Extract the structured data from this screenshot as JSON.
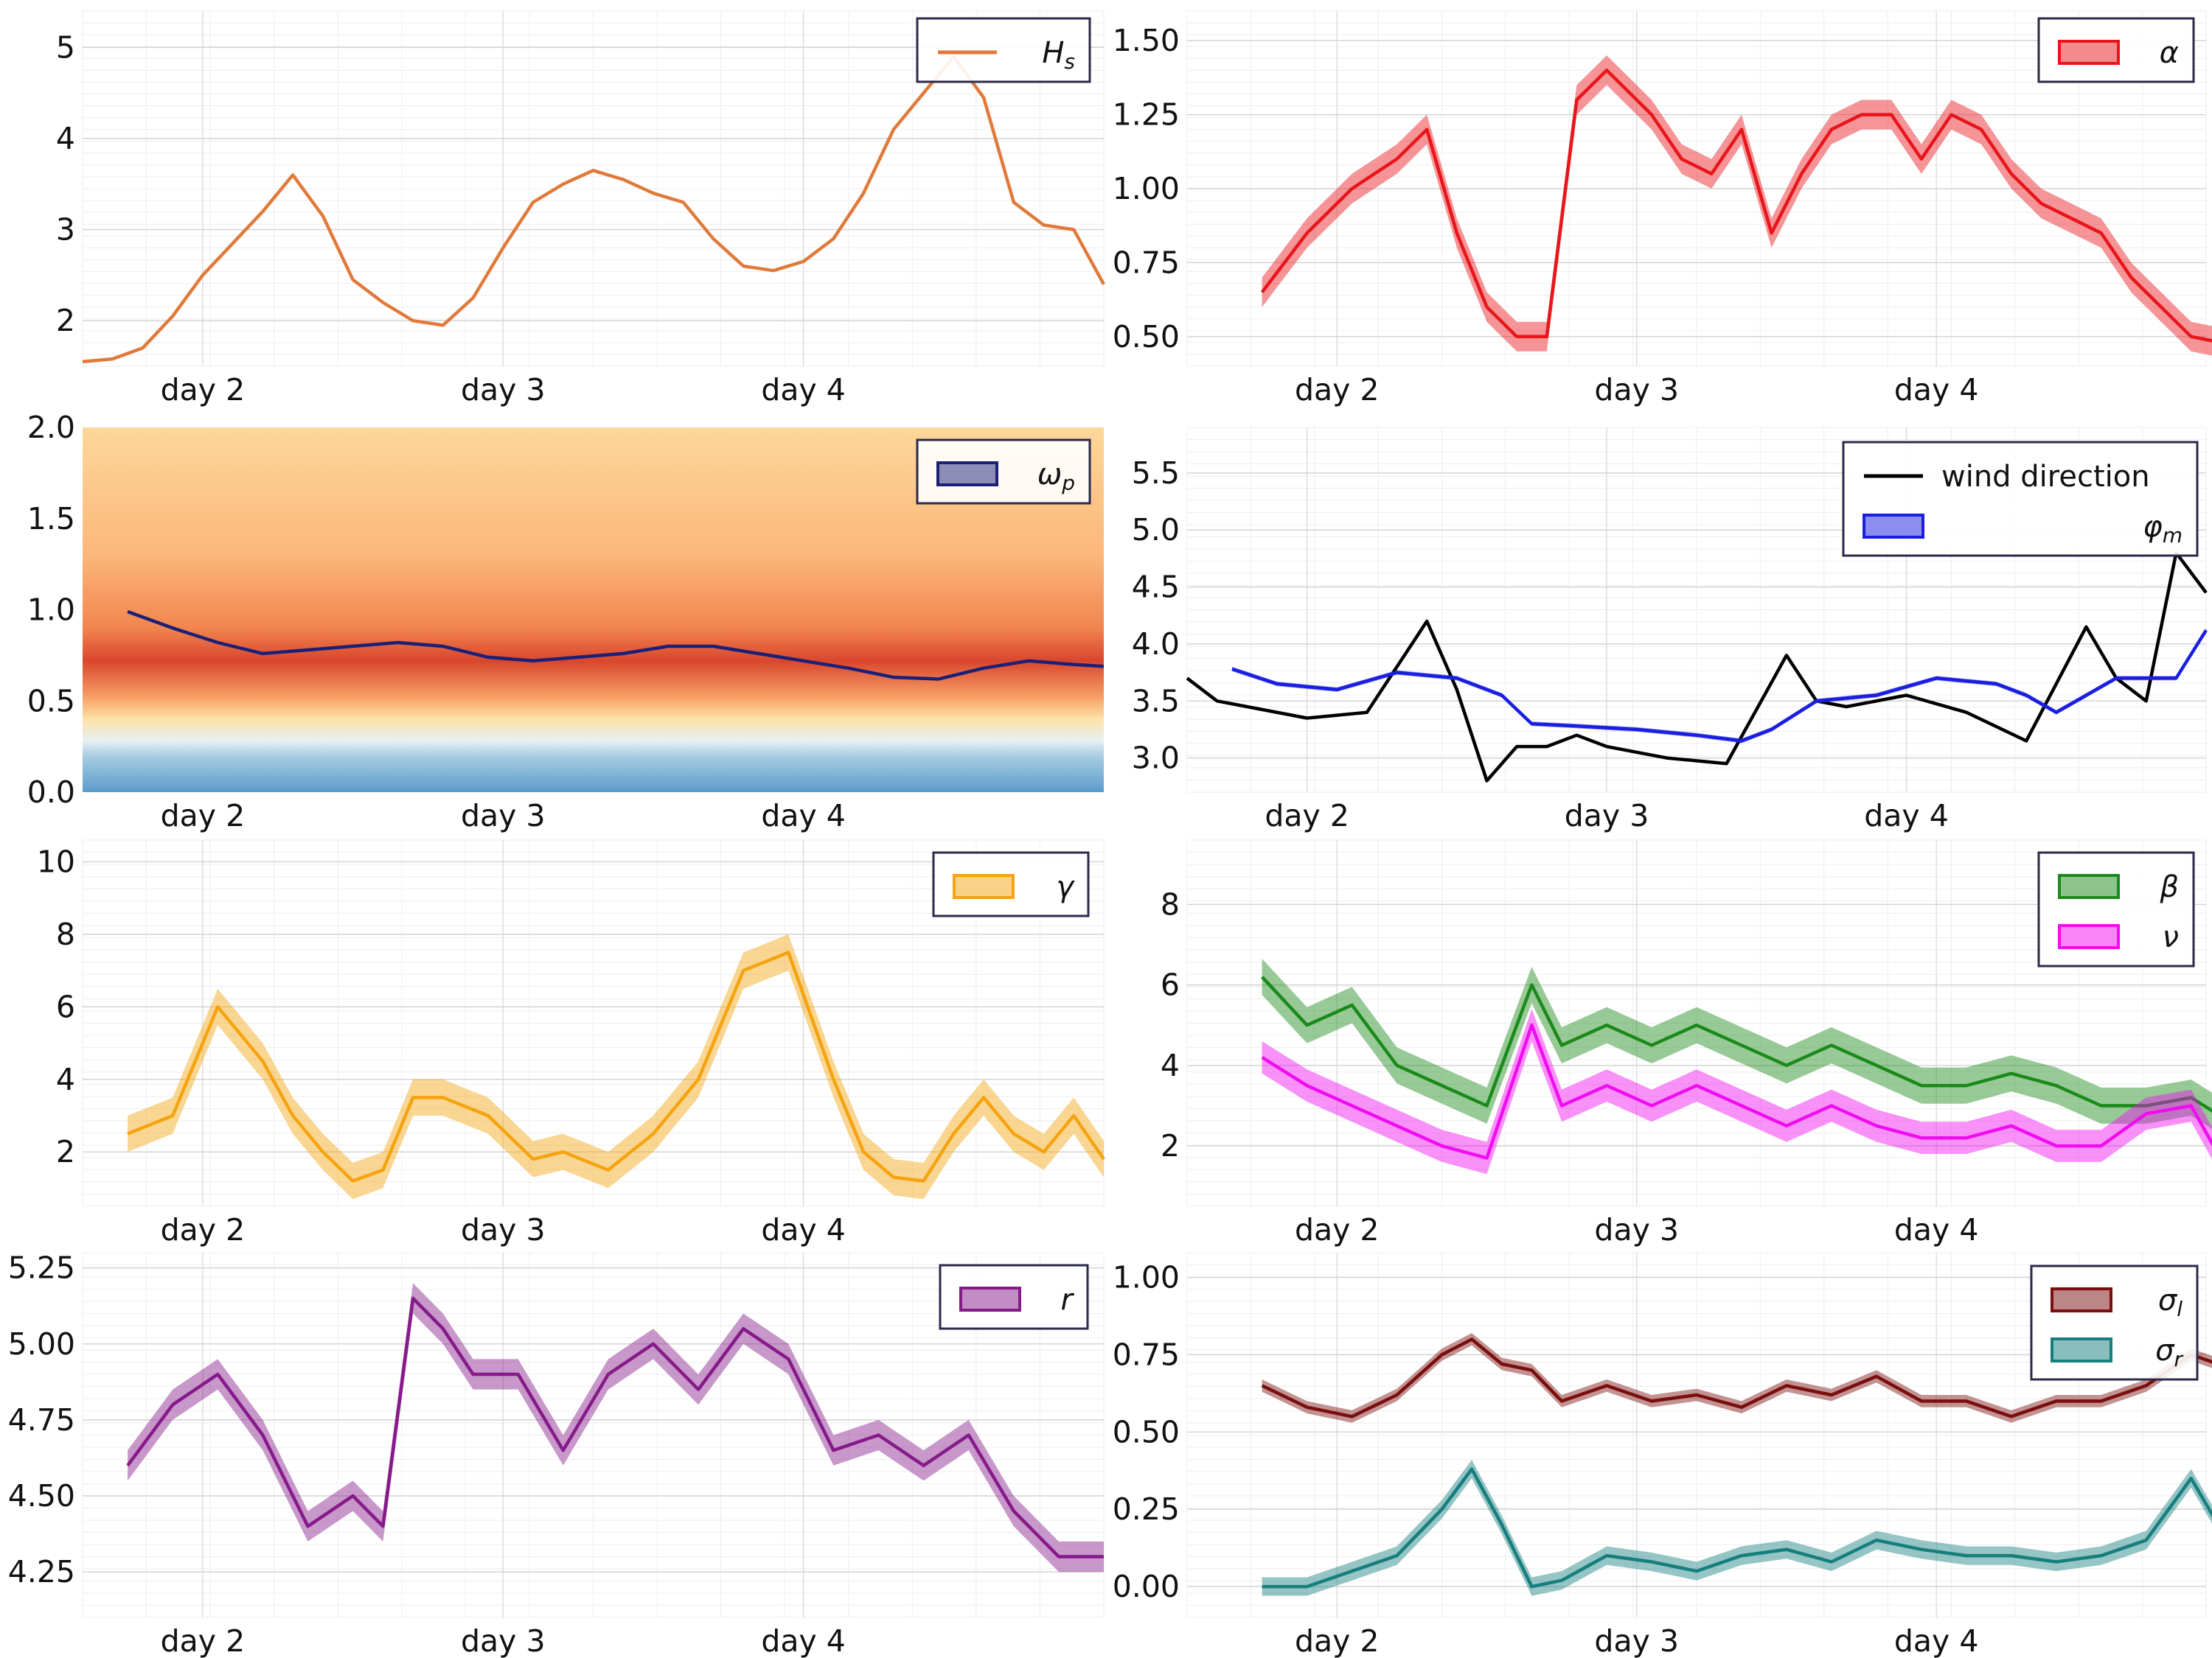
{
  "x_tick_labels": [
    "day 2",
    "day 3",
    "day 4"
  ],
  "chart_data": [
    {
      "id": "hs",
      "type": "line",
      "ylim": [
        1.5,
        5.4
      ],
      "yticks": [
        2,
        3,
        4,
        5
      ],
      "x": [
        0.0,
        0.1,
        0.2,
        0.3,
        0.4,
        0.5,
        0.6,
        0.7,
        0.8,
        0.9,
        1.0,
        1.1,
        1.2,
        1.3,
        1.4,
        1.5,
        1.6,
        1.7,
        1.8,
        1.9,
        2.0,
        2.1,
        2.2,
        2.3,
        2.4,
        2.5,
        2.6,
        2.7,
        2.8,
        2.9,
        3.0,
        3.1,
        3.2,
        3.3,
        3.4
      ],
      "series": [
        {
          "name": "H_s",
          "color": "#e07a3a",
          "values": [
            1.55,
            1.58,
            1.7,
            2.05,
            2.5,
            2.85,
            3.2,
            3.6,
            3.15,
            2.45,
            2.2,
            2.0,
            1.95,
            2.25,
            2.8,
            3.3,
            3.5,
            3.65,
            3.55,
            3.4,
            3.3,
            2.9,
            2.6,
            2.55,
            2.65,
            2.9,
            3.4,
            4.1,
            4.5,
            4.9,
            4.45,
            3.3,
            3.05,
            3.0,
            2.4
          ]
        }
      ],
      "legend": [
        {
          "label": "H",
          "sub": "s",
          "kind": "line",
          "color": "#e07a3a"
        }
      ]
    },
    {
      "id": "alpha",
      "type": "line",
      "ylim": [
        0.4,
        1.6
      ],
      "yticks": [
        0.5,
        0.75,
        1.0,
        1.25,
        1.5
      ],
      "ytick_labels": [
        "0.50",
        "0.75",
        "1.00",
        "1.25",
        "1.50"
      ],
      "x": [
        0.15,
        0.3,
        0.45,
        0.6,
        0.7,
        0.8,
        0.9,
        1.0,
        1.1,
        1.2,
        1.3,
        1.45,
        1.55,
        1.65,
        1.75,
        1.85,
        1.95,
        2.05,
        2.15,
        2.25,
        2.35,
        2.45,
        2.55,
        2.65,
        2.75,
        2.85,
        2.95,
        3.05,
        3.15,
        3.25,
        3.35
      ],
      "series": [
        {
          "name": "alpha",
          "color": "#e8151a",
          "band": 0.05,
          "values": [
            0.65,
            0.85,
            1.0,
            1.1,
            1.2,
            0.85,
            0.6,
            0.5,
            0.5,
            1.3,
            1.4,
            1.25,
            1.1,
            1.05,
            1.2,
            0.85,
            1.05,
            1.2,
            1.25,
            1.25,
            1.1,
            1.25,
            1.2,
            1.05,
            0.95,
            0.9,
            0.85,
            0.7,
            0.6,
            0.5,
            0.48
          ]
        }
      ],
      "legend": [
        {
          "label": "α",
          "sub": "",
          "kind": "patch",
          "color": "#e8151a"
        }
      ]
    },
    {
      "id": "omega",
      "type": "heatmap",
      "ylim": [
        0.0,
        2.0
      ],
      "yticks": [
        0.0,
        0.5,
        1.0,
        1.5,
        2.0
      ],
      "ytick_labels": [
        "0.0",
        "0.5",
        "1.0",
        "1.5",
        "2.0"
      ],
      "x": [
        0.15,
        0.3,
        0.45,
        0.6,
        0.75,
        0.9,
        1.05,
        1.2,
        1.35,
        1.5,
        1.65,
        1.8,
        1.95,
        2.1,
        2.25,
        2.4,
        2.55,
        2.7,
        2.85,
        3.0,
        3.15,
        3.3,
        3.4
      ],
      "series": [
        {
          "name": "omega_p",
          "color": "#1a1f78",
          "values": [
            0.99,
            0.9,
            0.82,
            0.76,
            0.78,
            0.8,
            0.82,
            0.8,
            0.74,
            0.72,
            0.74,
            0.76,
            0.8,
            0.8,
            0.76,
            0.72,
            0.68,
            0.63,
            0.62,
            0.68,
            0.72,
            0.7,
            0.69
          ]
        }
      ],
      "legend": [
        {
          "label": "ω",
          "sub": "p",
          "kind": "patch",
          "color": "#1a1f78"
        }
      ]
    },
    {
      "id": "wind",
      "type": "line",
      "ylim": [
        2.7,
        5.9
      ],
      "yticks": [
        3.0,
        3.5,
        4.0,
        4.5,
        5.0,
        5.5
      ],
      "ytick_labels": [
        "3.0",
        "3.5",
        "4.0",
        "4.5",
        "5.0",
        "5.5"
      ],
      "x": [
        0.0,
        0.1,
        0.2,
        0.4,
        0.6,
        0.8,
        0.9,
        1.0,
        1.1,
        1.2,
        1.3,
        1.4,
        1.6,
        1.8,
        2.0,
        2.1,
        2.2,
        2.4,
        2.6,
        2.8,
        3.0,
        3.1,
        3.2,
        3.3,
        3.4
      ],
      "series": [
        {
          "name": "wind direction",
          "color": "#000000",
          "values": [
            3.7,
            3.5,
            3.45,
            3.35,
            3.4,
            4.2,
            3.6,
            2.8,
            3.1,
            3.1,
            3.2,
            3.1,
            3.0,
            2.95,
            3.9,
            3.5,
            3.45,
            3.55,
            3.4,
            3.15,
            4.15,
            3.7,
            3.5,
            4.8,
            4.45
          ]
        },
        {
          "name": "φ_m",
          "color": "#1a1ee0",
          "band": 0.02,
          "x": [
            0.15,
            0.3,
            0.5,
            0.7,
            0.9,
            1.05,
            1.15,
            1.3,
            1.5,
            1.7,
            1.85,
            1.95,
            2.1,
            2.3,
            2.5,
            2.7,
            2.8,
            2.9,
            3.1,
            3.3,
            3.4
          ],
          "values": [
            3.78,
            3.65,
            3.6,
            3.75,
            3.7,
            3.55,
            3.3,
            3.28,
            3.25,
            3.2,
            3.15,
            3.25,
            3.5,
            3.55,
            3.7,
            3.65,
            3.55,
            3.4,
            3.7,
            3.7,
            4.12
          ]
        }
      ],
      "legend": [
        {
          "label": "wind direction",
          "sub": "",
          "kind": "line",
          "color": "#000000"
        },
        {
          "label": "φ",
          "sub": "m",
          "kind": "patch",
          "color": "#1a1ee0"
        }
      ]
    },
    {
      "id": "gamma",
      "type": "line",
      "ylim": [
        0.5,
        10.6
      ],
      "yticks": [
        2,
        4,
        6,
        8,
        10
      ],
      "x": [
        0.15,
        0.3,
        0.45,
        0.6,
        0.7,
        0.8,
        0.9,
        1.0,
        1.1,
        1.2,
        1.35,
        1.5,
        1.6,
        1.75,
        1.9,
        2.05,
        2.2,
        2.35,
        2.5,
        2.6,
        2.7,
        2.8,
        2.9,
        3.0,
        3.1,
        3.2,
        3.3,
        3.4
      ],
      "series": [
        {
          "name": "gamma",
          "color": "#f5a30f",
          "band": 0.5,
          "values": [
            2.5,
            3.0,
            6.0,
            4.5,
            3.0,
            2.0,
            1.2,
            1.5,
            3.5,
            3.5,
            3.0,
            1.8,
            2.0,
            1.5,
            2.5,
            4.0,
            7.0,
            7.5,
            4.0,
            2.0,
            1.3,
            1.2,
            2.5,
            3.5,
            2.5,
            2.0,
            3.0,
            1.8
          ]
        }
      ],
      "legend": [
        {
          "label": "γ",
          "sub": "",
          "kind": "patch",
          "color": "#f5a30f"
        }
      ]
    },
    {
      "id": "beta_nu",
      "type": "line",
      "ylim": [
        0.5,
        9.6
      ],
      "yticks": [
        2,
        4,
        6,
        8
      ],
      "x": [
        0.15,
        0.3,
        0.45,
        0.6,
        0.75,
        0.9,
        1.05,
        1.15,
        1.3,
        1.45,
        1.6,
        1.75,
        1.9,
        2.05,
        2.2,
        2.35,
        2.5,
        2.65,
        2.8,
        2.95,
        3.1,
        3.25,
        3.4
      ],
      "series": [
        {
          "name": "beta",
          "color": "#1a8a1a",
          "band": 0.45,
          "values": [
            6.2,
            5.0,
            5.5,
            4.0,
            3.5,
            3.0,
            6.0,
            4.5,
            5.0,
            4.5,
            5.0,
            4.5,
            4.0,
            4.5,
            4.0,
            3.5,
            3.5,
            3.8,
            3.5,
            3.0,
            3.0,
            3.2,
            2.5
          ]
        },
        {
          "name": "nu",
          "color": "#f00cf0",
          "band": 0.4,
          "values": [
            4.2,
            3.5,
            3.0,
            2.5,
            2.0,
            1.7,
            5.0,
            3.0,
            3.5,
            3.0,
            3.5,
            3.0,
            2.5,
            3.0,
            2.5,
            2.2,
            2.2,
            2.5,
            2.0,
            2.0,
            2.8,
            3.0,
            1.0
          ]
        }
      ],
      "legend": [
        {
          "label": "β",
          "sub": "",
          "kind": "patch",
          "color": "#1a8a1a"
        },
        {
          "label": "ν",
          "sub": "",
          "kind": "patch",
          "color": "#f00cf0"
        }
      ]
    },
    {
      "id": "r",
      "type": "line",
      "ylim": [
        4.1,
        5.3
      ],
      "yticks": [
        4.25,
        4.5,
        4.75,
        5.0,
        5.25
      ],
      "ytick_labels": [
        "4.25",
        "4.50",
        "4.75",
        "5.00",
        "5.25"
      ],
      "x": [
        0.15,
        0.3,
        0.45,
        0.6,
        0.75,
        0.9,
        1.0,
        1.1,
        1.2,
        1.3,
        1.45,
        1.6,
        1.75,
        1.9,
        2.05,
        2.2,
        2.35,
        2.5,
        2.65,
        2.8,
        2.95,
        3.1,
        3.25,
        3.4
      ],
      "series": [
        {
          "name": "r",
          "color": "#861a8a",
          "band": 0.05,
          "values": [
            4.6,
            4.8,
            4.9,
            4.7,
            4.4,
            4.5,
            4.4,
            5.15,
            5.05,
            4.9,
            4.9,
            4.65,
            4.9,
            5.0,
            4.85,
            5.05,
            4.95,
            4.65,
            4.7,
            4.6,
            4.7,
            4.45,
            4.3,
            4.3
          ]
        }
      ],
      "legend": [
        {
          "label": "r",
          "sub": "",
          "kind": "patch",
          "color": "#861a8a"
        }
      ]
    },
    {
      "id": "sigma",
      "type": "line",
      "ylim": [
        -0.1,
        1.08
      ],
      "yticks": [
        0.0,
        0.25,
        0.5,
        0.75,
        1.0
      ],
      "ytick_labels": [
        "0.00",
        "0.25",
        "0.50",
        "0.75",
        "1.00"
      ],
      "x": [
        0.15,
        0.3,
        0.45,
        0.6,
        0.75,
        0.85,
        0.95,
        1.05,
        1.15,
        1.3,
        1.45,
        1.6,
        1.75,
        1.9,
        2.05,
        2.2,
        2.35,
        2.5,
        2.65,
        2.8,
        2.95,
        3.1,
        3.25,
        3.4
      ],
      "series": [
        {
          "name": "sigma_l",
          "color": "#7a0e0e",
          "band": 0.02,
          "values": [
            0.65,
            0.58,
            0.55,
            0.62,
            0.75,
            0.8,
            0.72,
            0.7,
            0.6,
            0.65,
            0.6,
            0.62,
            0.58,
            0.65,
            0.62,
            0.68,
            0.6,
            0.6,
            0.55,
            0.6,
            0.6,
            0.65,
            0.75,
            0.7
          ]
        },
        {
          "name": "sigma_r",
          "color": "#167e7e",
          "band": 0.03,
          "values": [
            0.0,
            0.0,
            0.05,
            0.1,
            0.25,
            0.38,
            0.2,
            0.0,
            0.02,
            0.1,
            0.08,
            0.05,
            0.1,
            0.12,
            0.08,
            0.15,
            0.12,
            0.1,
            0.1,
            0.08,
            0.1,
            0.15,
            0.35,
            0.1
          ]
        }
      ],
      "legend": [
        {
          "label": "σ",
          "sub": "l",
          "kind": "patch",
          "color": "#7a0e0e"
        },
        {
          "label": "σ",
          "sub": "r",
          "kind": "patch",
          "color": "#167e7e"
        }
      ]
    }
  ]
}
